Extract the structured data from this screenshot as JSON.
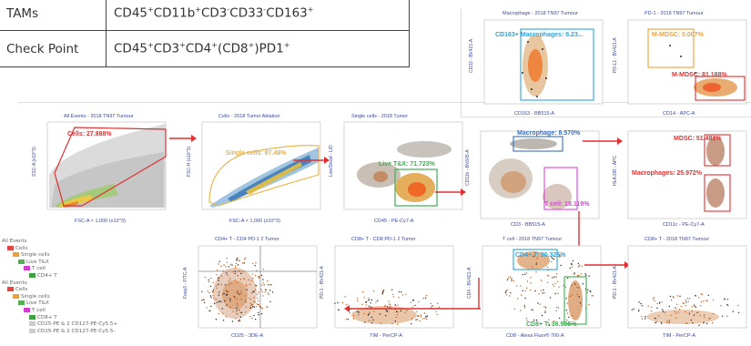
{
  "table": {
    "rows": [
      {
        "name": "TAMs",
        "markers": [
          "CD45",
          "+",
          "CD11b",
          "+",
          "CD3",
          "-",
          "CD33",
          "-",
          "CD163",
          "+"
        ]
      },
      {
        "name": "Check Point",
        "markers": [
          "CD45",
          "+",
          "CD3",
          "+",
          "CD4",
          "+",
          "(CD8",
          "+",
          ")PD1",
          "+"
        ]
      }
    ]
  },
  "plots": {
    "p1": {
      "title": "All Events - 2018 TN97 Tumour",
      "xlabel": "FSC-A × 1,000 (x10^3)",
      "ylabel": "SSC-A (x10^3)",
      "gate": "Cells: 27.888%"
    },
    "p2": {
      "title": "Cells - 2018 Tumor Ablation",
      "xlabel": "FSC-A × 1,000 (x10^3)",
      "ylabel": "FSC-H (x10^3)",
      "gate": "Single cells: 87.48%"
    },
    "p3": {
      "title": "Single cells - 2018 Tumor",
      "xlabel": "CD45 - PE-Cy7-A",
      "ylabel": "Live/Dead - L/D",
      "gate": "Live T&X: 71.723%"
    },
    "p4": {
      "title": "Live T&X - 2018 Tumor",
      "xlabel": "CD3 - BB515-A",
      "ylabel": "CD11b - BV605-A",
      "gate_a": "Macrophage: 8.570%",
      "gate_b": "T cell: 18.119%"
    },
    "p5": {
      "title": "Macrophage - 2018 TN97 Tumour",
      "xlabel": "CD163 - BB515-A",
      "ylabel": "CD33 - BV421-A",
      "gate": "CD163+ Macrophages: 8.23..."
    },
    "p6": {
      "title": "PD-1 - 2018 TN97 Tumour",
      "xlabel": "CD14 - APC-A",
      "ylabel": "PD-L1 - BV421-A",
      "gate_a": "M-MDSC: 0.007%",
      "gate_b": "M-MDSC: 81.188%"
    },
    "p7": {
      "title": "MDSC - 2018 TN97 Tumour",
      "xlabel": "CD11c - PE-Cy7-A",
      "ylabel": "HLA-DR - APC",
      "gate_a": "MDSC: 51.481%",
      "gate_b": "Macrophages: 25.972%"
    },
    "p8": {
      "title": "CD4+ T - CD4 PD-1 2 Tumor",
      "xlabel": "CD25 - 3DE-A",
      "ylabel": "Foxp3 - FITC-A",
      "gate": ""
    },
    "p9": {
      "title": "CD8+ T - CD8 PD-1 2 Tumor",
      "xlabel": "TIM - PerCP-A",
      "ylabel": "PD-1 - BV421-A",
      "gate": ""
    },
    "p10": {
      "title": "T cell - 2018 TN97 Tumour",
      "xlabel": "CD8 - Alexa Fluor® 700-A",
      "ylabel": "CD4 - BV421-A",
      "gate_a": "CD4+ T: 30.325%",
      "gate_b": "CD8+ T: 36.905%"
    },
    "p11": {
      "title": "CD8+ T - 2018 TN97 Tumour",
      "xlabel": "TIM - PerCP-A",
      "ylabel": "PD-1 - BV421-A",
      "gate": ""
    }
  },
  "hierarchy": [
    {
      "label": "All Events",
      "indent": 0,
      "color": ""
    },
    {
      "label": "Cells",
      "indent": 1,
      "color": "#e04848"
    },
    {
      "label": "Single cells",
      "indent": 2,
      "color": "#e8a040"
    },
    {
      "label": "Live T&X",
      "indent": 3,
      "color": "#55b055"
    },
    {
      "label": "T cell",
      "indent": 4,
      "color": "#d040d0"
    },
    {
      "label": "CD4+ T",
      "indent": 5,
      "color": "#40a040"
    },
    {
      "label": "All Events",
      "indent": 0,
      "color": ""
    },
    {
      "label": "Cells",
      "indent": 1,
      "color": "#e04848"
    },
    {
      "label": "Single cells",
      "indent": 2,
      "color": "#e8a040"
    },
    {
      "label": "Live T&X",
      "indent": 3,
      "color": "#55b055"
    },
    {
      "label": "T cell",
      "indent": 4,
      "color": "#d040d0"
    },
    {
      "label": "CD8+ T",
      "indent": 5,
      "color": "#40a040"
    },
    {
      "label": "CD25-PE & 2 CD127-PE-Cy5.5+",
      "indent": 5,
      "color": "#cccccc"
    },
    {
      "label": "CD25-PE & 2 CD127-PE-Cy5.5-",
      "indent": 5,
      "color": "#cccccc"
    }
  ],
  "colors": {
    "gate_red": "#e03030",
    "gate_blue": "#2aa5d8",
    "gate_green": "#3bb050",
    "gate_magenta": "#e040e0",
    "gate_orange": "#f0a030",
    "label_blue": "#3a4aa0"
  }
}
